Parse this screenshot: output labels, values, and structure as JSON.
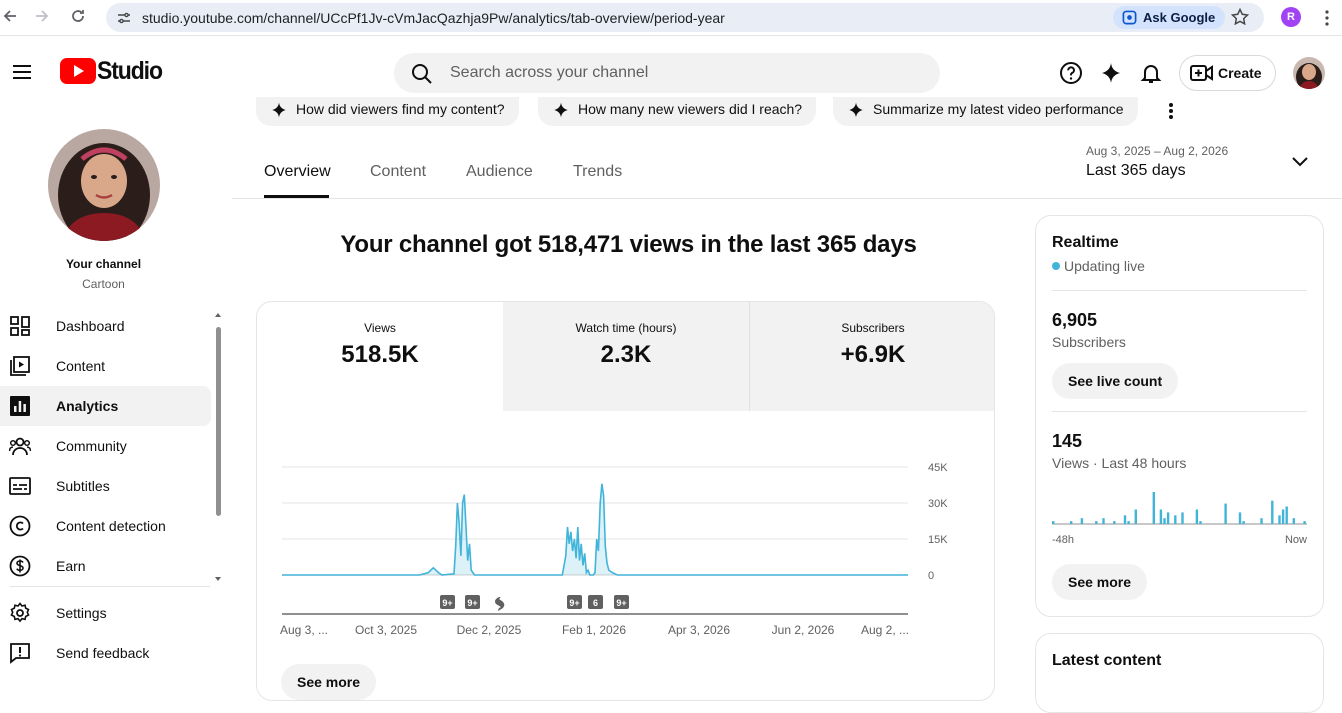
{
  "browser": {
    "url": "studio.youtube.com/channel/UCcPf1Jv-cVmJacQazhja9Pw/analytics/tab-overview/period-year",
    "ask_google": "Ask Google",
    "profile_initial": "R"
  },
  "header": {
    "logo_text": "Studio",
    "search_placeholder": "Search across your channel",
    "create_label": "Create"
  },
  "sidebar": {
    "channel_name": "Your channel",
    "channel_sub": "Cartoon",
    "items": [
      {
        "label": "Dashboard",
        "icon": "dashboard-icon"
      },
      {
        "label": "Content",
        "icon": "content-icon"
      },
      {
        "label": "Analytics",
        "icon": "analytics-icon",
        "active": true
      },
      {
        "label": "Community",
        "icon": "community-icon"
      },
      {
        "label": "Subtitles",
        "icon": "subtitles-icon"
      },
      {
        "label": "Content detection",
        "icon": "copyright-icon"
      },
      {
        "label": "Earn",
        "icon": "earn-icon"
      }
    ],
    "bottom": [
      {
        "label": "Settings",
        "icon": "settings-icon"
      },
      {
        "label": "Send feedback",
        "icon": "feedback-icon"
      }
    ]
  },
  "chips": [
    "How did viewers find my content?",
    "How many new viewers did I reach?",
    "Summarize my latest video performance"
  ],
  "tabs": [
    "Overview",
    "Content",
    "Audience",
    "Trends"
  ],
  "date": {
    "range": "Aug 3, 2025 – Aug 2, 2026",
    "label": "Last 365 days"
  },
  "headline": "Your channel got 518,471 views in the last 365 days",
  "metrics": [
    {
      "label": "Views",
      "value": "518.5K"
    },
    {
      "label": "Watch time (hours)",
      "value": "2.3K"
    },
    {
      "label": "Subscribers",
      "value": "+6.9K"
    }
  ],
  "chart_data": {
    "type": "line",
    "x_labels": [
      "Aug 3, ...",
      "Oct 3, 2025",
      "Dec 2, 2025",
      "Feb 1, 2026",
      "Apr 3, 2026",
      "Jun 2, 2026",
      "Aug 2, ..."
    ],
    "y_ticks": [
      "45K",
      "30K",
      "15K",
      "0"
    ],
    "ylim": [
      0,
      45000
    ],
    "series": [
      {
        "values_by_day_index": [
          [
            0,
            0
          ],
          [
            80,
            0
          ],
          [
            85,
            1000
          ],
          [
            88,
            3000
          ],
          [
            91,
            1000
          ],
          [
            93,
            0
          ],
          [
            100,
            500
          ],
          [
            101,
            12000
          ],
          [
            102,
            30000
          ],
          [
            103,
            22000
          ],
          [
            104,
            8000
          ],
          [
            105,
            30000
          ],
          [
            106,
            33500
          ],
          [
            107,
            20000
          ],
          [
            108,
            6000
          ],
          [
            109,
            13000
          ],
          [
            110,
            2000
          ],
          [
            112,
            0
          ],
          [
            163,
            0
          ],
          [
            165,
            8000
          ],
          [
            166,
            20000
          ],
          [
            167,
            13000
          ],
          [
            168,
            18000
          ],
          [
            169,
            10000
          ],
          [
            170,
            15000
          ],
          [
            171,
            7000
          ],
          [
            172,
            20000
          ],
          [
            173,
            6000
          ],
          [
            174,
            13000
          ],
          [
            175,
            4000
          ],
          [
            176,
            9000
          ],
          [
            177,
            1000
          ],
          [
            178,
            2000
          ],
          [
            179,
            0
          ],
          [
            181,
            0
          ],
          [
            182,
            1000
          ],
          [
            183,
            15000
          ],
          [
            184,
            10000
          ],
          [
            185,
            30000
          ],
          [
            186,
            38000
          ],
          [
            187,
            33000
          ],
          [
            188,
            12000
          ],
          [
            189,
            5000
          ],
          [
            190,
            2000
          ],
          [
            192,
            1000
          ],
          [
            195,
            0
          ],
          [
            364,
            0
          ]
        ]
      }
    ],
    "markers": [
      "9+",
      "9+",
      "short",
      "9+",
      "6",
      "9+"
    ]
  },
  "realtime": {
    "title": "Realtime",
    "status": "Updating live",
    "subscribers": "6,905",
    "subscribers_label": "Subscribers",
    "see_live": "See live count",
    "views": "145",
    "views_label": "Views · Last 48 hours",
    "axis_start": "-48h",
    "axis_end": "Now",
    "bars": [
      1,
      0,
      0,
      0,
      0,
      1,
      0,
      0,
      2,
      0,
      0,
      0,
      1,
      0,
      2,
      0,
      0,
      1,
      0,
      0,
      3,
      1,
      0,
      5,
      0,
      0,
      0,
      0,
      11,
      0,
      5,
      2,
      4,
      0,
      3,
      0,
      4,
      0,
      0,
      0,
      5,
      1,
      0,
      0,
      0,
      0,
      0,
      0,
      7,
      0,
      0,
      0,
      4,
      1,
      0,
      0,
      0,
      0,
      2,
      0,
      0,
      8,
      0,
      3,
      5,
      6,
      0,
      2,
      0,
      0,
      1
    ],
    "see_more": "See more"
  },
  "latest_content": {
    "title": "Latest content"
  },
  "chart_see_more": "See more",
  "colors": {
    "accent": "#41b4d9",
    "youtube_red": "#ff0000"
  }
}
